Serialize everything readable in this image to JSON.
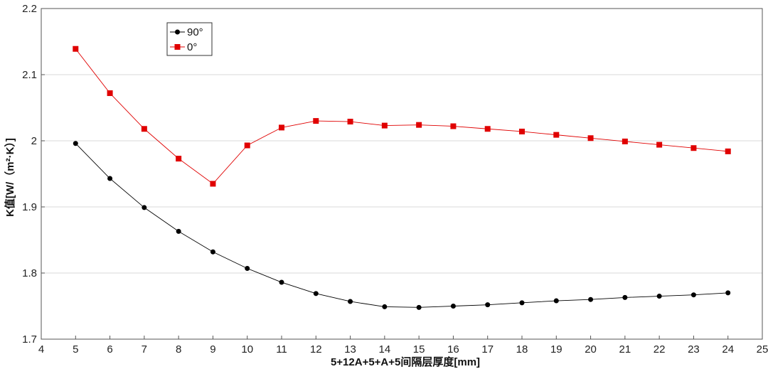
{
  "chart_data": {
    "type": "line",
    "title": "",
    "xlabel": "5+12A+5+A+5间隔层厚度[mm]",
    "ylabel": "K值[W/（m²·K）]",
    "xlim": [
      4,
      25
    ],
    "ylim": [
      1.7,
      2.2
    ],
    "x_ticks": [
      4,
      5,
      6,
      7,
      8,
      9,
      10,
      11,
      12,
      13,
      14,
      15,
      16,
      17,
      18,
      19,
      20,
      21,
      22,
      23,
      24,
      25
    ],
    "y_ticks": [
      1.7,
      1.8,
      1.9,
      2.0,
      2.1,
      2.2
    ],
    "x_tick_labels": [
      "4",
      "5",
      "6",
      "7",
      "8",
      "9",
      "10",
      "11",
      "12",
      "13",
      "14",
      "15",
      "16",
      "17",
      "18",
      "19",
      "20",
      "21",
      "22",
      "23",
      "24",
      "25"
    ],
    "y_tick_labels": [
      "1.7",
      "1.8",
      "1.9",
      "2",
      "2.1",
      "2.2"
    ],
    "grid": true,
    "legend_position": "top-left",
    "x": [
      5,
      6,
      7,
      8,
      9,
      10,
      11,
      12,
      13,
      14,
      15,
      16,
      17,
      18,
      19,
      20,
      21,
      22,
      23,
      24
    ],
    "series": [
      {
        "name": "90°",
        "color": "#000000",
        "marker": "circle",
        "values": [
          1.996,
          1.943,
          1.899,
          1.863,
          1.832,
          1.807,
          1.786,
          1.769,
          1.757,
          1.749,
          1.748,
          1.75,
          1.752,
          1.755,
          1.758,
          1.76,
          1.763,
          1.765,
          1.767,
          1.77
        ]
      },
      {
        "name": "0°",
        "color": "#e00000",
        "marker": "square",
        "values": [
          2.139,
          2.072,
          2.018,
          1.973,
          1.935,
          1.993,
          2.02,
          2.03,
          2.029,
          2.023,
          2.024,
          2.022,
          2.018,
          2.014,
          2.009,
          2.004,
          1.999,
          1.994,
          1.989,
          1.984
        ]
      }
    ]
  }
}
